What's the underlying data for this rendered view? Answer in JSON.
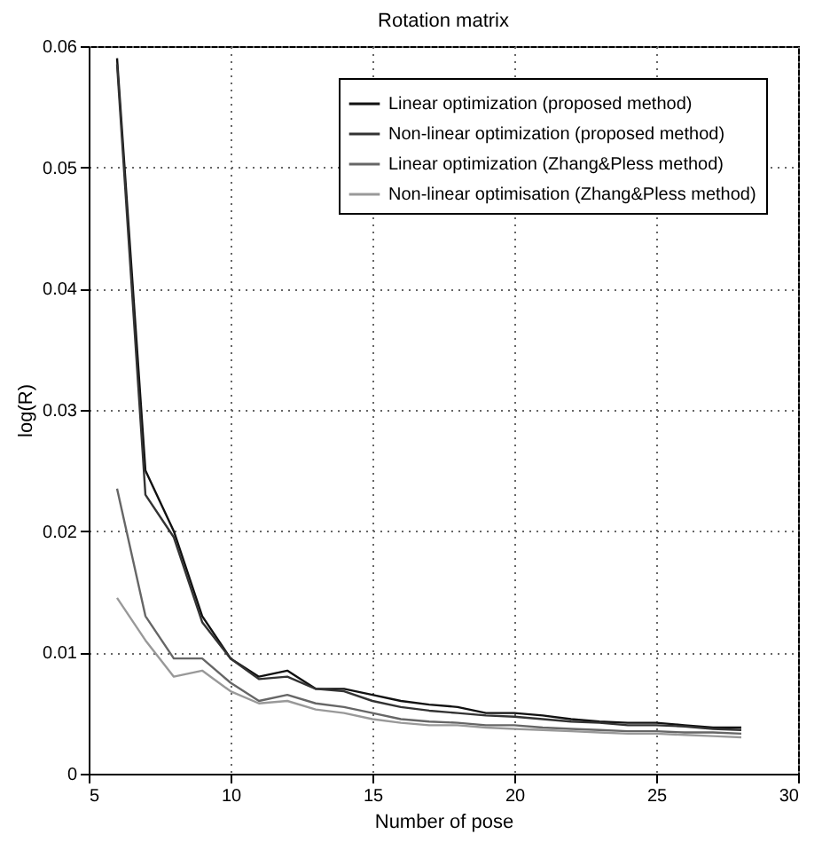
{
  "chart_data": {
    "type": "line",
    "title": "Rotation matrix",
    "xlabel": "Number of pose",
    "ylabel": "log(R)",
    "x": [
      6,
      7,
      8,
      9,
      10,
      11,
      12,
      13,
      14,
      15,
      16,
      17,
      18,
      19,
      20,
      21,
      22,
      23,
      24,
      25,
      26,
      27,
      28
    ],
    "series": [
      {
        "name": "Linear optimization (proposed method)",
        "color": "#111111",
        "values": [
          0.059,
          0.025,
          0.02,
          0.013,
          0.0095,
          0.008,
          0.0085,
          0.007,
          0.007,
          0.0065,
          0.006,
          0.0057,
          0.0055,
          0.005,
          0.005,
          0.0048,
          0.0045,
          0.0043,
          0.0042,
          0.0042,
          0.004,
          0.0038,
          0.0038
        ]
      },
      {
        "name": "Non-linear optimization (proposed method)",
        "color": "#333333",
        "values": [
          0.0585,
          0.023,
          0.0195,
          0.0125,
          0.0095,
          0.0078,
          0.008,
          0.007,
          0.0068,
          0.006,
          0.0055,
          0.0052,
          0.005,
          0.0048,
          0.0047,
          0.0045,
          0.0043,
          0.0042,
          0.004,
          0.004,
          0.0039,
          0.0037,
          0.0036
        ]
      },
      {
        "name": "Linear optimization (Zhang&Pless method)",
        "color": "#666666",
        "values": [
          0.0235,
          0.013,
          0.0095,
          0.0095,
          0.0075,
          0.006,
          0.0065,
          0.0058,
          0.0055,
          0.005,
          0.0045,
          0.0043,
          0.0042,
          0.004,
          0.004,
          0.0038,
          0.0037,
          0.0036,
          0.0035,
          0.0035,
          0.0034,
          0.0034,
          0.0033
        ]
      },
      {
        "name": "Non-linear optimisation (Zhang&Pless method)",
        "color": "#999999",
        "values": [
          0.0145,
          0.011,
          0.008,
          0.0085,
          0.0068,
          0.0058,
          0.006,
          0.0053,
          0.005,
          0.0045,
          0.0042,
          0.004,
          0.004,
          0.0038,
          0.0037,
          0.0036,
          0.0035,
          0.0034,
          0.0033,
          0.0033,
          0.0032,
          0.0031,
          0.003
        ]
      }
    ],
    "xlim": [
      5,
      30
    ],
    "xticks": [
      5,
      10,
      15,
      20,
      25,
      30
    ],
    "ylim": [
      0,
      0.06
    ],
    "yticks": [
      0,
      0.01,
      0.02,
      0.03,
      0.04,
      0.05,
      0.06
    ],
    "grid": true,
    "legend": "top right",
    "marker": "none",
    "line_style": "solid"
  }
}
